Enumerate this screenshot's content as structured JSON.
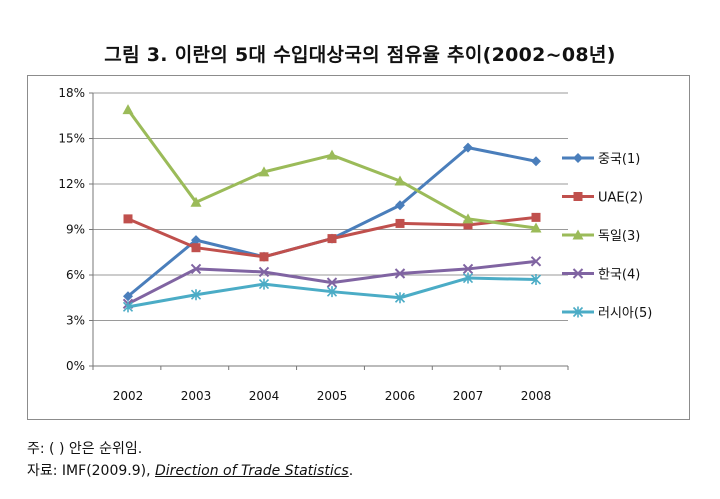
{
  "chart_data": {
    "type": "line",
    "title": "그림 3. 이란의 5대 수입대상국의 점유율 추이(2002~08년)",
    "xlabel": "",
    "ylabel": "",
    "categories": [
      "2002",
      "2003",
      "2004",
      "2005",
      "2006",
      "2007",
      "2008"
    ],
    "y_ticks": [
      "0%",
      "3%",
      "6%",
      "9%",
      "12%",
      "15%",
      "18%"
    ],
    "ylim": [
      0,
      18
    ],
    "grid": "horizontal",
    "legend_position": "right",
    "series": [
      {
        "name": "중국(1)",
        "color": "#4a7ebb",
        "marker": "diamond",
        "values": [
          4.6,
          8.3,
          7.2,
          8.4,
          10.6,
          14.4,
          13.5
        ]
      },
      {
        "name": "UAE(2)",
        "color": "#c0504d",
        "marker": "square",
        "values": [
          9.7,
          7.8,
          7.2,
          8.4,
          9.4,
          9.3,
          9.8
        ]
      },
      {
        "name": "독일(3)",
        "color": "#9bbb59",
        "marker": "triangle",
        "values": [
          16.9,
          10.8,
          12.8,
          13.9,
          12.2,
          9.7,
          9.1
        ]
      },
      {
        "name": "한국(4)",
        "color": "#8064a2",
        "marker": "x",
        "values": [
          4.1,
          6.4,
          6.2,
          5.5,
          6.1,
          6.4,
          6.9
        ]
      },
      {
        "name": "러시아(5)",
        "color": "#4bacc6",
        "marker": "star",
        "values": [
          3.9,
          4.7,
          5.4,
          4.9,
          4.5,
          5.8,
          5.7
        ]
      }
    ]
  },
  "notes": {
    "note1": "주: ( ) 안은 순위임.",
    "note2_prefix": "자료: IMF(2009.9),",
    "note2_source": "Direction of Trade Statistics",
    "note2_suffix": "."
  }
}
